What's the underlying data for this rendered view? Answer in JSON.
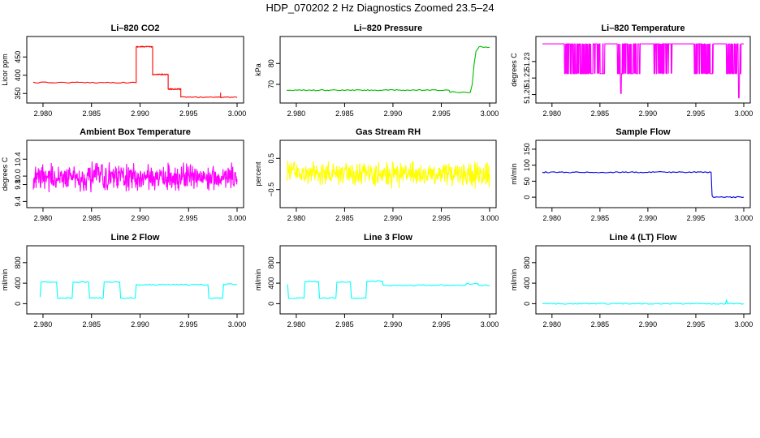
{
  "figure": {
    "title": "HDP_070202  2 Hz Diagnostics Zoomed 23.5–24"
  },
  "chart_data": [
    {
      "type": "line",
      "title": "Li–820 CO2",
      "ylabel": "Licor ppm",
      "color": "#ff0000",
      "xlim": [
        2.979,
        3.0
      ],
      "ylim": [
        335,
        495
      ],
      "x_ticks": [
        "2.980",
        "2.985",
        "2.990",
        "2.995",
        "3.000"
      ],
      "y_ticks": [
        {
          "v": 350,
          "label": "350"
        },
        {
          "v": 400,
          "label": "400"
        },
        {
          "v": 450,
          "label": "450"
        }
      ],
      "segments": [
        {
          "x": [
            2.979,
            2.9896
          ],
          "y": 380
        },
        {
          "x": [
            2.9896,
            2.9913
          ],
          "y": 478
        },
        {
          "x": [
            2.9913,
            2.9929
          ],
          "y": 402
        },
        {
          "x": [
            2.9929,
            2.9942
          ],
          "y": 362
        },
        {
          "x": [
            2.9942,
            3.0
          ],
          "y": 340
        }
      ],
      "spikes": [
        {
          "x": 2.9983,
          "y": 352
        }
      ]
    },
    {
      "type": "line",
      "title": "Li–820 Pressure",
      "ylabel": "kPa",
      "color": "#00bb00",
      "xlim": [
        2.979,
        3.0
      ],
      "ylim": [
        63,
        91
      ],
      "x_ticks": [
        "2.980",
        "2.985",
        "2.990",
        "2.995",
        "3.000"
      ],
      "y_ticks": [
        {
          "v": 70,
          "label": "70"
        },
        {
          "v": 80,
          "label": "80"
        }
      ],
      "points": [
        [
          2.979,
          67.2
        ],
        [
          2.9958,
          67.2
        ],
        [
          2.9959,
          66.2
        ],
        [
          2.998,
          66.2
        ],
        [
          2.9982,
          70
        ],
        [
          2.9984,
          80
        ],
        [
          2.9986,
          86
        ],
        [
          2.9989,
          88
        ],
        [
          3.0,
          87.8
        ]
      ]
    },
    {
      "type": "line",
      "title": "Li–820 Temperature",
      "ylabel": "degrees C",
      "color": "#ff00ff",
      "xlim": [
        2.979,
        3.0
      ],
      "ylim": [
        51.196,
        51.249
      ],
      "x_ticks": [
        "2.980",
        "2.985",
        "2.990",
        "2.995",
        "3.000"
      ],
      "y_ticks": [
        {
          "v": 51.2,
          "label": "51.20"
        },
        {
          "v": 51.215,
          "label": "51.22"
        },
        {
          "v": 51.23,
          "label": "51.23"
        }
      ],
      "baseline": 51.246,
      "low": 51.219,
      "bursts": [
        [
          2.9813,
          2.9855
        ],
        [
          2.9868,
          2.9892
        ],
        [
          2.9906,
          2.9925
        ],
        [
          2.9948,
          2.9968
        ],
        [
          2.9982,
          2.9998
        ]
      ],
      "deep_spikes": [
        {
          "x": 2.9872,
          "y": 51.201
        },
        {
          "x": 2.9995,
          "y": 51.197
        }
      ]
    },
    {
      "type": "line",
      "title": "Ambient Box Temperature",
      "ylabel": "degrees C",
      "color": "#ff00ff",
      "xlim": [
        2.979,
        3.0
      ],
      "ylim": [
        9.35,
        10.75
      ],
      "x_ticks": [
        "2.980",
        "2.985",
        "2.990",
        "2.995",
        "3.000"
      ],
      "y_ticks": [
        {
          "v": 9.4,
          "label": "9.4"
        },
        {
          "v": 9.8,
          "label": "9.8"
        },
        {
          "v": 10.0,
          "label": "10.0"
        },
        {
          "v": 10.4,
          "label": "10.4"
        }
      ],
      "noise": {
        "center": 9.97,
        "amp": 0.32,
        "max": 10.68,
        "min": 9.38
      }
    },
    {
      "type": "line",
      "title": "Gas Stream RH",
      "ylabel": "percent",
      "color": "#ffff00",
      "xlim": [
        2.979,
        3.0
      ],
      "ylim": [
        -0.95,
        0.95
      ],
      "x_ticks": [
        "2.980",
        "2.985",
        "2.990",
        "2.995",
        "3.000"
      ],
      "y_ticks": [
        {
          "v": -0.5,
          "label": "−0.5"
        },
        {
          "v": 0.5,
          "label": "0.5"
        }
      ],
      "noise": {
        "center": 0.0,
        "amp": 0.4,
        "max": 0.7,
        "min": -0.9
      }
    },
    {
      "type": "line",
      "title": "Sample Flow",
      "ylabel": "ml/min",
      "color": "#0000dd",
      "xlim": [
        2.979,
        3.0
      ],
      "ylim": [
        -20,
        165
      ],
      "x_ticks": [
        "2.980",
        "2.985",
        "2.990",
        "2.995",
        "3.000"
      ],
      "y_ticks": [
        {
          "v": 0,
          "label": "0"
        },
        {
          "v": 50,
          "label": "50"
        },
        {
          "v": 100,
          "label": "100"
        },
        {
          "v": 150,
          "label": "150"
        }
      ],
      "points": [
        [
          2.979,
          78
        ],
        [
          2.9966,
          78
        ],
        [
          2.9967,
          5
        ],
        [
          2.9968,
          0
        ],
        [
          3.0,
          0
        ]
      ]
    },
    {
      "type": "line",
      "title": "Line 2 Flow",
      "ylabel": "ml/min",
      "color": "#00ffff",
      "xlim": [
        2.979,
        3.0
      ],
      "ylim": [
        -120,
        1050
      ],
      "x_ticks": [
        "2.980",
        "2.985",
        "2.990",
        "2.995",
        "3.000"
      ],
      "y_ticks": [
        {
          "v": 0,
          "label": "0"
        },
        {
          "v": 400,
          "label": "400"
        },
        {
          "v": 800,
          "label": "800"
        }
      ],
      "points": [
        [
          2.9797,
          130
        ],
        [
          2.9798,
          420
        ],
        [
          2.9814,
          420
        ],
        [
          2.9815,
          110
        ],
        [
          2.983,
          110
        ],
        [
          2.9831,
          420
        ],
        [
          2.9847,
          420
        ],
        [
          2.9848,
          110
        ],
        [
          2.9862,
          110
        ],
        [
          2.9863,
          420
        ],
        [
          2.9879,
          420
        ],
        [
          2.988,
          110
        ],
        [
          2.9895,
          110
        ],
        [
          2.9896,
          370
        ],
        [
          2.997,
          370
        ],
        [
          2.9971,
          110
        ],
        [
          2.9985,
          110
        ],
        [
          2.9986,
          380
        ],
        [
          3.0,
          380
        ]
      ]
    },
    {
      "type": "line",
      "title": "Line 3 Flow",
      "ylabel": "ml/min",
      "color": "#00ffff",
      "xlim": [
        2.979,
        3.0
      ],
      "ylim": [
        -120,
        1050
      ],
      "x_ticks": [
        "2.980",
        "2.985",
        "2.990",
        "2.995",
        "3.000"
      ],
      "y_ticks": [
        {
          "v": 0,
          "label": "0"
        },
        {
          "v": 400,
          "label": "400"
        },
        {
          "v": 800,
          "label": "800"
        }
      ],
      "points": [
        [
          2.9791,
          380
        ],
        [
          2.9792,
          110
        ],
        [
          2.9808,
          110
        ],
        [
          2.9809,
          430
        ],
        [
          2.9823,
          430
        ],
        [
          2.9824,
          110
        ],
        [
          2.9841,
          110
        ],
        [
          2.9842,
          420
        ],
        [
          2.9856,
          420
        ],
        [
          2.9857,
          110
        ],
        [
          2.9872,
          110
        ],
        [
          2.9873,
          440
        ],
        [
          2.9889,
          440
        ],
        [
          2.989,
          360
        ],
        [
          2.9975,
          360
        ],
        [
          2.9976,
          390
        ],
        [
          2.9988,
          390
        ],
        [
          2.9989,
          360
        ],
        [
          3.0,
          360
        ]
      ]
    },
    {
      "type": "line",
      "title": "Line 4 (LT) Flow",
      "ylabel": "ml/min",
      "color": "#00ffff",
      "xlim": [
        2.979,
        3.0
      ],
      "ylim": [
        -120,
        1050
      ],
      "x_ticks": [
        "2.980",
        "2.985",
        "2.990",
        "2.995",
        "3.000"
      ],
      "y_ticks": [
        {
          "v": 0,
          "label": "0"
        },
        {
          "v": 400,
          "label": "400"
        },
        {
          "v": 800,
          "label": "800"
        }
      ],
      "points": [
        [
          2.979,
          0
        ],
        [
          2.9981,
          0
        ],
        [
          2.9982,
          80
        ],
        [
          2.9983,
          0
        ],
        [
          3.0,
          0
        ]
      ]
    }
  ]
}
